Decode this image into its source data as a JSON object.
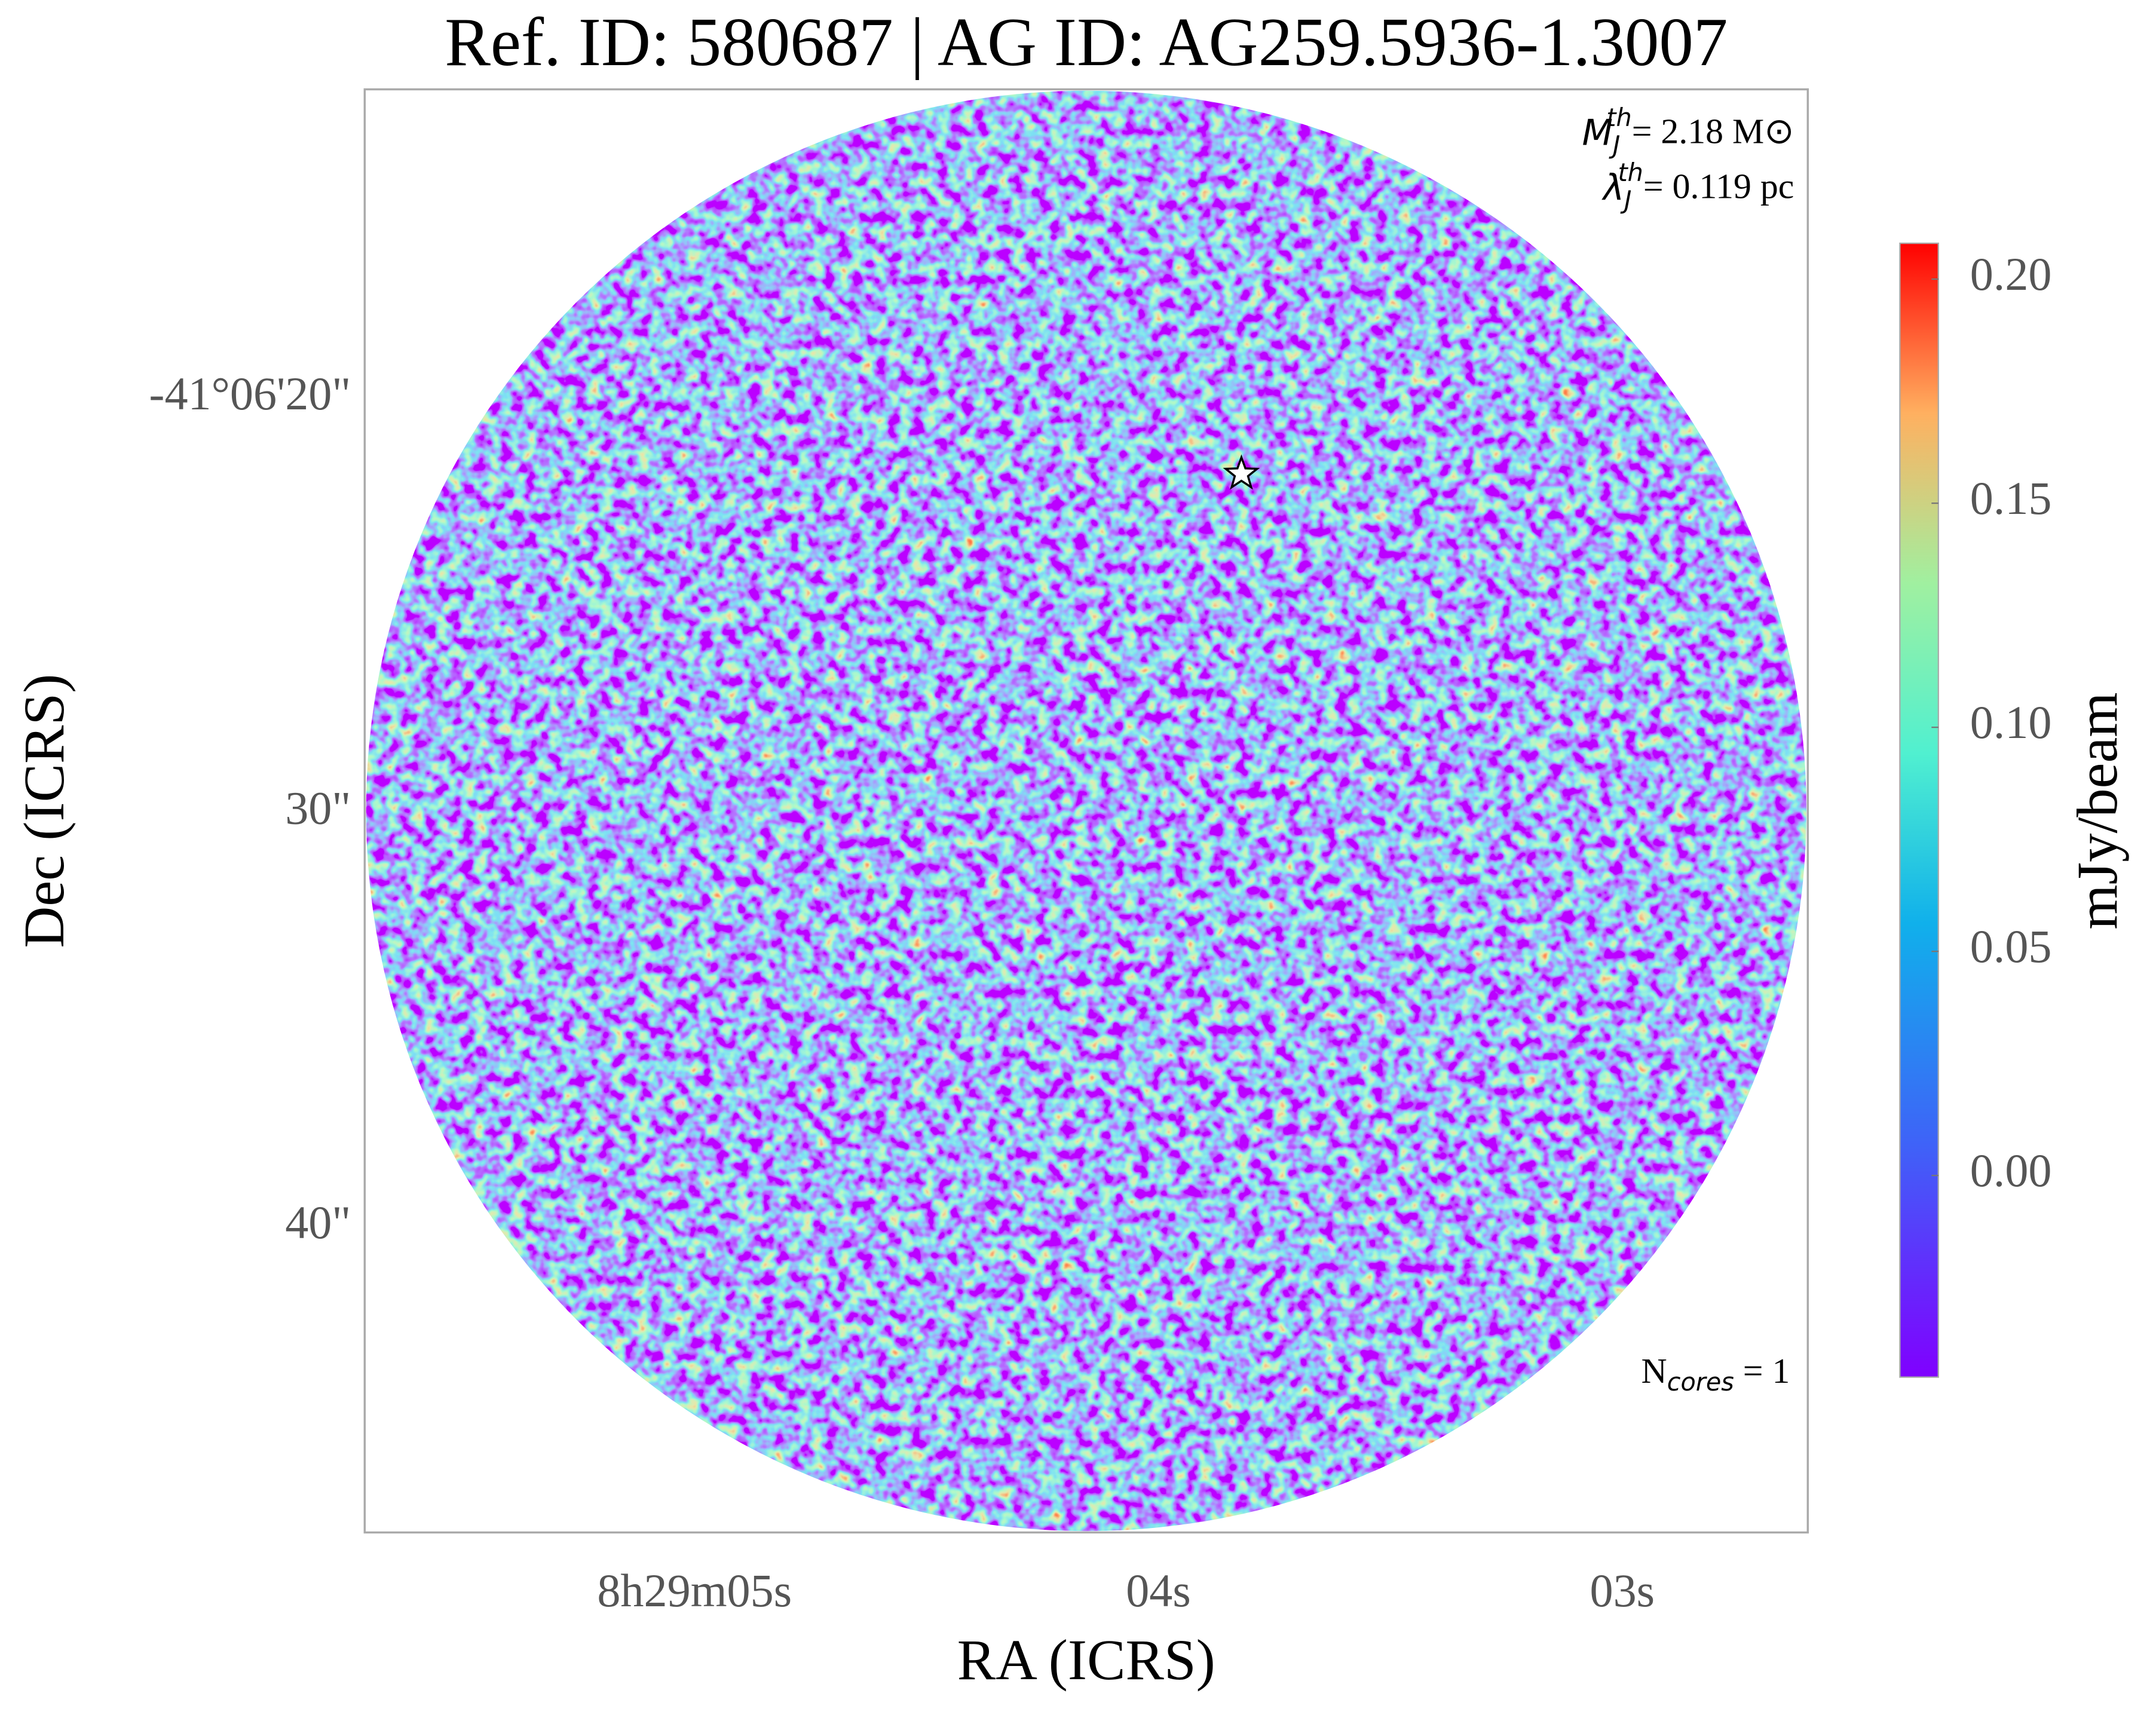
{
  "chart_data": {
    "type": "image",
    "title": "Ref. ID: 580687 | AG ID: AG259.5936-1.3007",
    "xlabel": "RA (ICRS)",
    "ylabel": "Dec (ICRS)",
    "xlim": [
      5.711,
      2.6
    ],
    "xticks": [
      {
        "value": 5,
        "label": "8h29m05s"
      },
      {
        "value": 4,
        "label": "04s"
      },
      {
        "value": 3,
        "label": "03s"
      }
    ],
    "ylim": [
      47.36,
      12.54
    ],
    "yticks": [
      {
        "value": 20,
        "label": "-41°06'20\""
      },
      {
        "value": 30,
        "label": "30\""
      },
      {
        "value": 40,
        "label": "40\""
      }
    ],
    "colorbar": {
      "label": "mJy/beam",
      "colormap": "rainbow",
      "lim": [
        -0.045,
        0.208
      ],
      "ticks": [
        {
          "value": 0,
          "label": "0.00"
        },
        {
          "value": 0.05,
          "label": "0.05"
        },
        {
          "value": 0.1,
          "label": "0.10"
        },
        {
          "value": 0.15,
          "label": "0.15"
        },
        {
          "value": 0.2,
          "label": "0.20"
        }
      ]
    },
    "markers": [
      {
        "x": 3.821,
        "y": 21.82
      }
    ],
    "annotations": [
      {
        "base": "M",
        "sub": "J",
        "sup": "th",
        "text": "= 2.18 M⊙"
      },
      {
        "base": "λ",
        "sub": "J",
        "sup": "th",
        "text": "= 0.119 pc"
      },
      {
        "base": "N",
        "sub": "cores",
        "text": " = 1"
      }
    ]
  }
}
